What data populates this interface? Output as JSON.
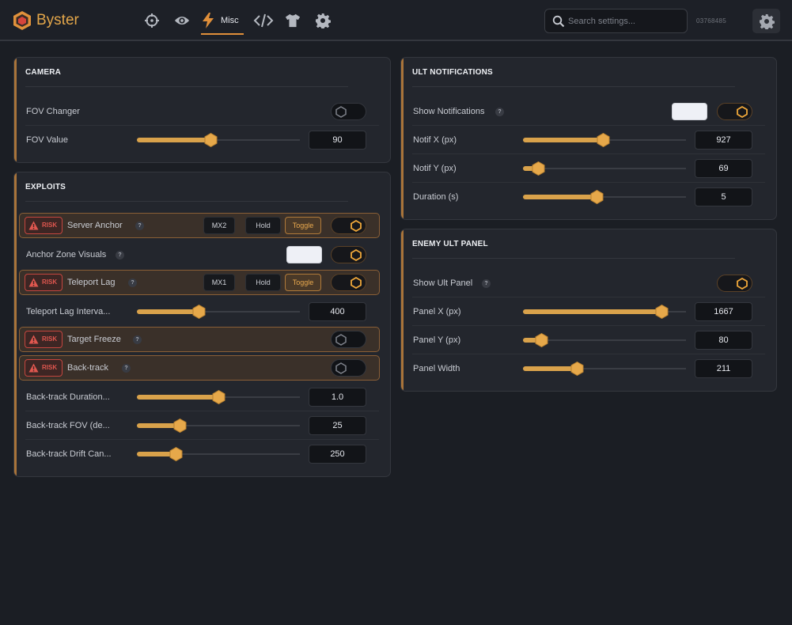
{
  "app": {
    "title": "Byster",
    "serial": "03768485",
    "accent": "#e3a64a",
    "nav": {
      "icons": [
        "crosshair-icon",
        "eye-icon",
        "bolt-icon",
        "code-icon",
        "shirt-icon",
        "gear-icon"
      ],
      "active_tab": "Misc"
    },
    "search": {
      "placeholder": "Search settings...",
      "value": ""
    },
    "settings_icon": "gear-icon"
  },
  "camera": {
    "title": "CAMERA",
    "fov_changer": {
      "label": "FOV Changer",
      "enabled": false
    },
    "fov_value": {
      "label": "FOV Value",
      "value": "90",
      "fill": 0.45
    }
  },
  "exploits": {
    "title": "EXPLOITS",
    "risk_label": "RISK",
    "server_anchor": {
      "label": "Server Anchor",
      "help": "?",
      "key": "MX2",
      "hold": "Hold",
      "toggle": "Toggle",
      "enabled": true
    },
    "anchor_zone_visuals": {
      "label": "Anchor Zone Visuals",
      "help": "?",
      "color": "#eef0f6",
      "enabled": true
    },
    "teleport_lag": {
      "label": "Teleport Lag",
      "help": "?",
      "key": "MX1",
      "hold": "Hold",
      "toggle": "Toggle",
      "enabled": true
    },
    "teleport_lag_interval": {
      "label": "Teleport Lag Interva...",
      "value": "400",
      "fill": 0.38
    },
    "target_freeze": {
      "label": "Target Freeze",
      "help": "?",
      "enabled": false
    },
    "back_track": {
      "label": "Back-track",
      "help": "?",
      "enabled": false
    },
    "back_track_duration": {
      "label": "Back-track Duration...",
      "value": "1.0",
      "fill": 0.5
    },
    "back_track_fov": {
      "label": "Back-track FOV (de...",
      "value": "25",
      "fill": 0.26
    },
    "back_track_drift": {
      "label": "Back-track Drift Can...",
      "value": "250",
      "fill": 0.24
    }
  },
  "ult_notifications": {
    "title": "ULT NOTIFICATIONS",
    "show_notifications": {
      "label": "Show Notifications",
      "help": "?",
      "color": "#eef0f6",
      "enabled": true
    },
    "notif_x": {
      "label": "Notif X (px)",
      "value": "927",
      "fill": 0.49
    },
    "notif_y": {
      "label": "Notif Y (px)",
      "value": "69",
      "fill": 0.09
    },
    "duration": {
      "label": "Duration (s)",
      "value": "5",
      "fill": 0.45
    }
  },
  "enemy_ult_panel": {
    "title": "ENEMY ULT PANEL",
    "show_ult_panel": {
      "label": "Show Ult Panel",
      "help": "?",
      "enabled": true
    },
    "panel_x": {
      "label": "Panel X (px)",
      "value": "1667",
      "fill": 0.85
    },
    "panel_y": {
      "label": "Panel Y (px)",
      "value": "80",
      "fill": 0.11
    },
    "panel_width": {
      "label": "Panel Width",
      "value": "211",
      "fill": 0.33
    }
  }
}
